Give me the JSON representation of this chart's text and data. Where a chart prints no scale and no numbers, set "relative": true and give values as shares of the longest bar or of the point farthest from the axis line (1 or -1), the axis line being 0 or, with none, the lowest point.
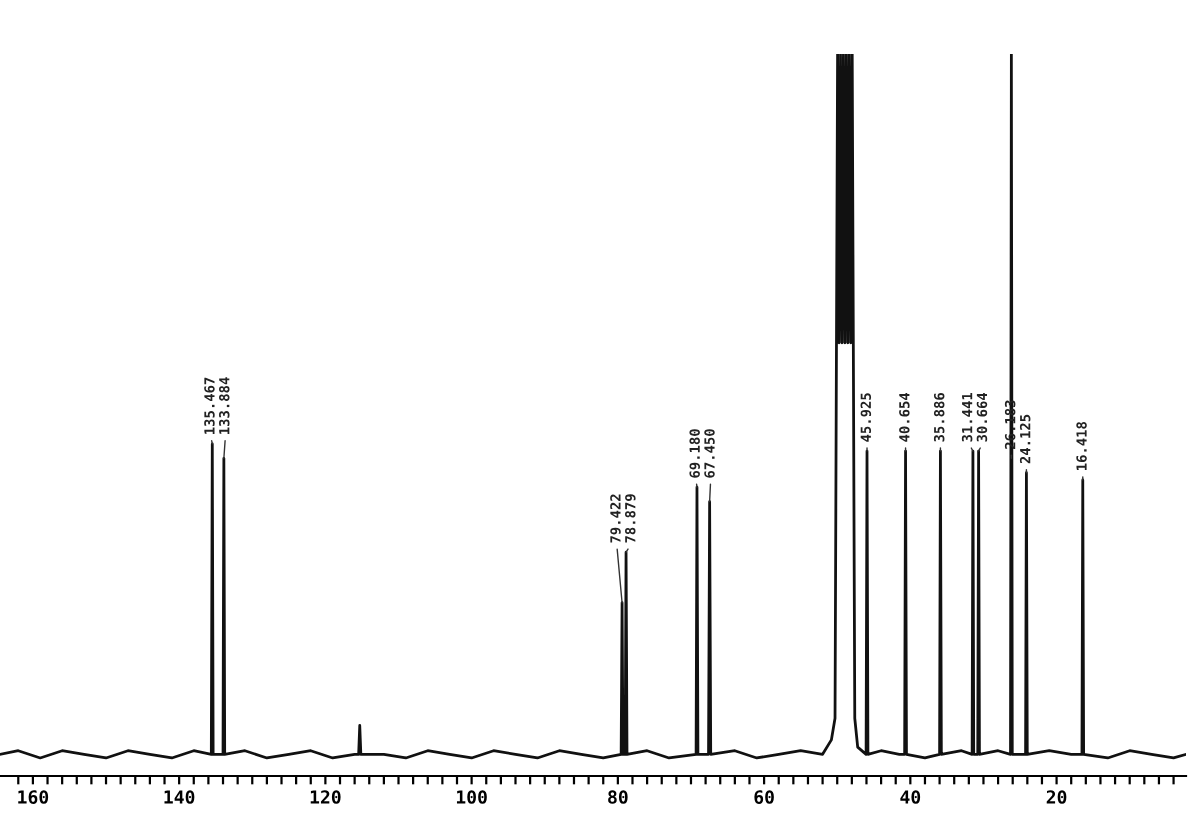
{
  "chart_data": {
    "type": "line",
    "relative": true,
    "color": "#111111",
    "x": [
      164.5,
      162,
      159,
      156,
      153,
      150,
      147,
      144,
      141,
      138,
      135.6,
      135.467,
      135.35,
      134.0,
      133.884,
      133.77,
      131,
      128,
      125,
      122,
      119,
      116,
      115.45,
      115.3,
      115.15,
      112,
      109,
      106,
      103,
      100,
      97,
      94,
      91,
      88,
      85,
      82,
      79.55,
      79.422,
      79.3,
      79.0,
      78.879,
      78.75,
      76,
      73,
      69.3,
      69.18,
      69.05,
      67.6,
      67.45,
      67.3,
      64,
      61,
      58,
      55,
      52,
      50.8,
      50.3,
      49.95,
      49.75,
      49.55,
      49.35,
      49.15,
      48.95,
      48.75,
      48.55,
      48.35,
      48.15,
      47.95,
      47.6,
      47.2,
      46.05,
      45.925,
      45.8,
      44,
      41.5,
      40.78,
      40.654,
      40.53,
      38,
      36.0,
      35.886,
      35.76,
      33,
      31.55,
      31.441,
      31.33,
      30.78,
      30.664,
      30.55,
      28,
      26.3,
      26.183,
      26.06,
      25,
      24.24,
      24.125,
      24.01,
      21,
      18,
      16.53,
      16.418,
      16.3,
      13,
      10,
      7,
      4,
      2.3
    ],
    "values": [
      0.03,
      0.035,
      0.025,
      0.035,
      0.03,
      0.025,
      0.035,
      0.03,
      0.025,
      0.035,
      0.03,
      0.46,
      0.03,
      0.03,
      0.44,
      0.03,
      0.035,
      0.025,
      0.03,
      0.035,
      0.025,
      0.03,
      0.03,
      0.07,
      0.03,
      0.03,
      0.025,
      0.035,
      0.03,
      0.025,
      0.035,
      0.03,
      0.025,
      0.035,
      0.03,
      0.025,
      0.03,
      0.24,
      0.03,
      0.03,
      0.31,
      0.03,
      0.035,
      0.025,
      0.03,
      0.4,
      0.03,
      0.03,
      0.38,
      0.03,
      0.035,
      0.025,
      0.03,
      0.035,
      0.03,
      0.05,
      0.08,
      1.0,
      0.6,
      1.0,
      0.6,
      1.0,
      0.6,
      1.0,
      0.6,
      1.0,
      0.6,
      1.0,
      0.08,
      0.04,
      0.03,
      0.45,
      0.03,
      0.035,
      0.03,
      0.03,
      0.45,
      0.03,
      0.025,
      0.03,
      0.45,
      0.03,
      0.035,
      0.03,
      0.45,
      0.03,
      0.03,
      0.45,
      0.03,
      0.035,
      0.03,
      1.0,
      0.03,
      0.03,
      0.03,
      0.42,
      0.03,
      0.035,
      0.03,
      0.03,
      0.41,
      0.03,
      0.025,
      0.035,
      0.03,
      0.025,
      0.03
    ],
    "xlim": [
      164.5,
      2.3
    ],
    "xticks": [
      {
        "value": 162,
        "label": null
      },
      160,
      {
        "value": 158,
        "label": null
      },
      {
        "value": 156,
        "label": null
      },
      {
        "value": 154,
        "label": null
      },
      {
        "value": 152,
        "label": null
      },
      {
        "value": 150,
        "label": null
      },
      {
        "value": 148,
        "label": null
      },
      {
        "value": 146,
        "label": null
      },
      {
        "value": 144,
        "label": null
      },
      {
        "value": 142,
        "label": null
      },
      140,
      {
        "value": 138,
        "label": null
      },
      {
        "value": 136,
        "label": null
      },
      {
        "value": 134,
        "label": null
      },
      {
        "value": 132,
        "label": null
      },
      {
        "value": 130,
        "label": null
      },
      {
        "value": 128,
        "label": null
      },
      {
        "value": 126,
        "label": null
      },
      {
        "value": 124,
        "label": null
      },
      {
        "value": 122,
        "label": null
      },
      120,
      {
        "value": 118,
        "label": null
      },
      {
        "value": 116,
        "label": null
      },
      {
        "value": 114,
        "label": null
      },
      {
        "value": 112,
        "label": null
      },
      {
        "value": 110,
        "label": null
      },
      {
        "value": 108,
        "label": null
      },
      {
        "value": 106,
        "label": null
      },
      {
        "value": 104,
        "label": null
      },
      {
        "value": 102,
        "label": null
      },
      100,
      {
        "value": 98,
        "label": null
      },
      {
        "value": 96,
        "label": null
      },
      {
        "value": 94,
        "label": null
      },
      {
        "value": 92,
        "label": null
      },
      {
        "value": 90,
        "label": null
      },
      {
        "value": 88,
        "label": null
      },
      {
        "value": 86,
        "label": null
      },
      {
        "value": 84,
        "label": null
      },
      {
        "value": 82,
        "label": null
      },
      80,
      {
        "value": 78,
        "label": null
      },
      {
        "value": 76,
        "label": null
      },
      {
        "value": 74,
        "label": null
      },
      {
        "value": 72,
        "label": null
      },
      {
        "value": 70,
        "label": null
      },
      {
        "value": 68,
        "label": null
      },
      {
        "value": 66,
        "label": null
      },
      {
        "value": 64,
        "label": null
      },
      {
        "value": 62,
        "label": null
      },
      60,
      {
        "value": 58,
        "label": null
      },
      {
        "value": 56,
        "label": null
      },
      {
        "value": 54,
        "label": null
      },
      {
        "value": 52,
        "label": null
      },
      {
        "value": 50,
        "label": null
      },
      {
        "value": 48,
        "label": null
      },
      {
        "value": 46,
        "label": null
      },
      {
        "value": 44,
        "label": null
      },
      {
        "value": 42,
        "label": null
      },
      40,
      {
        "value": 38,
        "label": null
      },
      {
        "value": 36,
        "label": null
      },
      {
        "value": 34,
        "label": null
      },
      {
        "value": 32,
        "label": null
      },
      {
        "value": 30,
        "label": null
      },
      {
        "value": 28,
        "label": null
      },
      {
        "value": 26,
        "label": null
      },
      {
        "value": 24,
        "label": null
      },
      {
        "value": 22,
        "label": null
      },
      20,
      {
        "value": 18,
        "label": null
      },
      {
        "value": 16,
        "label": null
      },
      {
        "value": 14,
        "label": null
      },
      {
        "value": 12,
        "label": null
      },
      {
        "value": 10,
        "label": null
      },
      {
        "value": 8,
        "label": null
      },
      {
        "value": 6,
        "label": null
      },
      {
        "value": 4,
        "label": null
      }
    ],
    "annotations": [
      {
        "text": "135.467",
        "x": 135.467,
        "y": 0.46
      },
      {
        "text": "133.884",
        "x": 133.884,
        "y": 0.44
      },
      {
        "text": "79.422",
        "x": 79.422,
        "y": 0.24
      },
      {
        "text": "78.879",
        "x": 78.879,
        "y": 0.31
      },
      {
        "text": "69.180",
        "x": 69.18,
        "y": 0.4
      },
      {
        "text": "67.450",
        "x": 67.45,
        "y": 0.38
      },
      {
        "text": "45.925",
        "x": 45.925,
        "y": 0.45
      },
      {
        "text": "40.654",
        "x": 40.654,
        "y": 0.45
      },
      {
        "text": "35.886",
        "x": 35.886,
        "y": 0.45
      },
      {
        "text": "31.441",
        "x": 31.441,
        "y": 0.45
      },
      {
        "text": "30.664",
        "x": 30.664,
        "y": 0.45
      },
      {
        "text": "26.183",
        "x": 26.183,
        "y": 0.44
      },
      {
        "text": "24.125",
        "x": 24.125,
        "y": 0.42
      },
      {
        "text": "16.418",
        "x": 16.418,
        "y": 0.41
      }
    ]
  }
}
